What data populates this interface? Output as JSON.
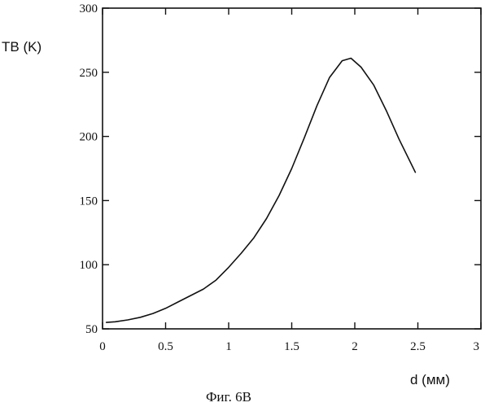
{
  "chart_data": {
    "type": "line",
    "title": "",
    "ylabel": "TB (K)",
    "xlabel": "d (мм)",
    "caption": "Фиг. 6В",
    "xlim": [
      0,
      3
    ],
    "ylim": [
      50,
      300
    ],
    "xticks": [
      0,
      0.5,
      1,
      1.5,
      2,
      2.5,
      3
    ],
    "xtick_labels": [
      "0",
      "0.5",
      "1",
      "1.5",
      "2",
      "2.5",
      "3"
    ],
    "yticks": [
      50,
      100,
      150,
      200,
      250,
      300
    ],
    "ytick_labels": [
      "50",
      "100",
      "150",
      "200",
      "250",
      "300"
    ],
    "grid": false,
    "series": [
      {
        "x": [
          0.03,
          0.1,
          0.2,
          0.3,
          0.4,
          0.5,
          0.6,
          0.7,
          0.8,
          0.9,
          1.0,
          1.1,
          1.2,
          1.3,
          1.4,
          1.5,
          1.6,
          1.7,
          1.8,
          1.9,
          1.97,
          2.05,
          2.15,
          2.25,
          2.35,
          2.48
        ],
        "y": [
          55,
          55.5,
          57,
          59,
          62,
          66,
          71,
          76,
          81,
          88,
          98,
          109,
          121,
          136,
          154,
          175,
          199,
          224,
          246,
          259,
          261,
          254,
          240,
          220,
          198,
          172
        ]
      }
    ]
  }
}
